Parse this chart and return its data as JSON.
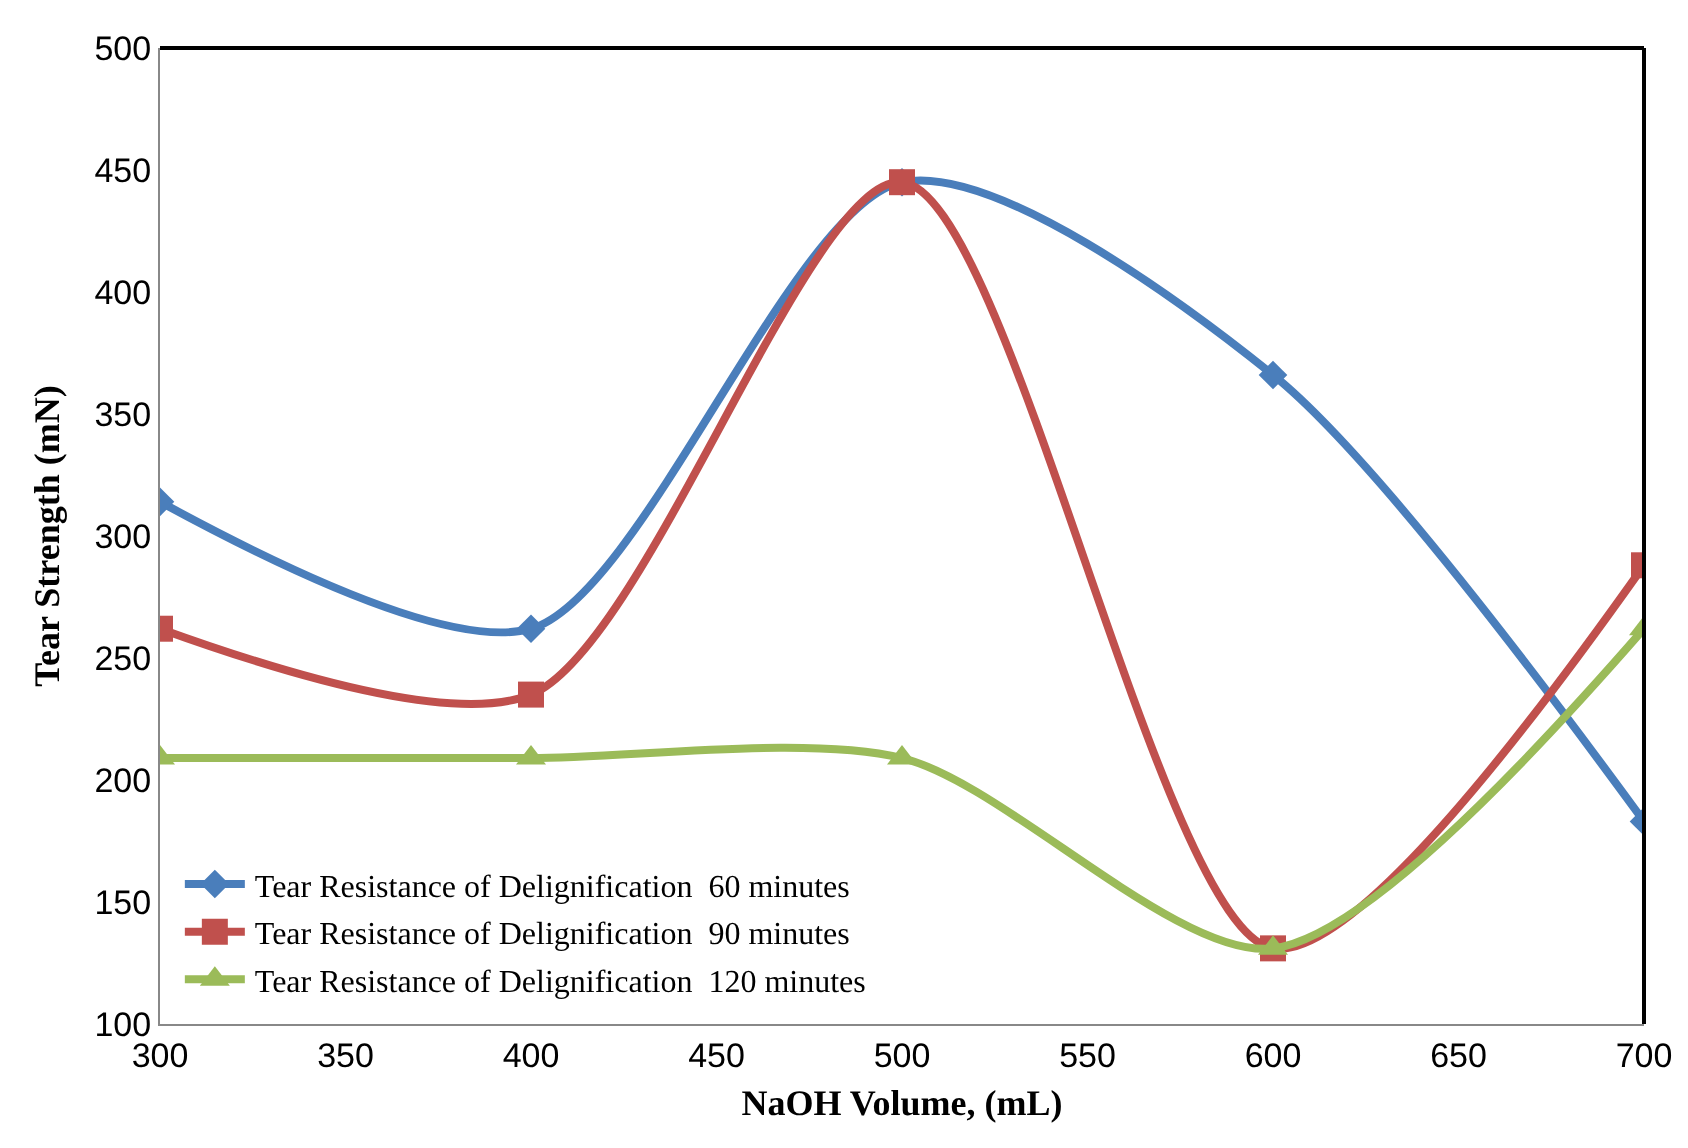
{
  "chart_data": {
    "type": "line",
    "xlabel": "NaOH Volume, (mL)",
    "ylabel": "Tear Strength (mN)",
    "x": [
      300,
      400,
      500,
      600,
      700
    ],
    "series": [
      {
        "name": "Tear Resistance of Delignification  60 minutes",
        "color": "#4a7ebb",
        "marker": "diamond",
        "values": [
          314,
          262,
          445,
          366,
          183
        ]
      },
      {
        "name": "Tear Resistance of Delignification  90 minutes",
        "color": "#c0504d",
        "marker": "square",
        "values": [
          262,
          235,
          445,
          131,
          288
        ]
      },
      {
        "name": "Tear Resistance of Delignification  120 minutes",
        "color": "#9bbb59",
        "marker": "triangle",
        "values": [
          209,
          209,
          209,
          131,
          262
        ]
      }
    ],
    "xlim": [
      300,
      700
    ],
    "xticks": [
      300,
      350,
      400,
      450,
      500,
      550,
      600,
      650,
      700
    ],
    "ylim": [
      100,
      500
    ],
    "yticks": [
      100,
      150,
      200,
      250,
      300,
      350,
      400,
      450,
      500
    ],
    "grid": false,
    "legend": "bottom left",
    "line_style": "solid"
  }
}
